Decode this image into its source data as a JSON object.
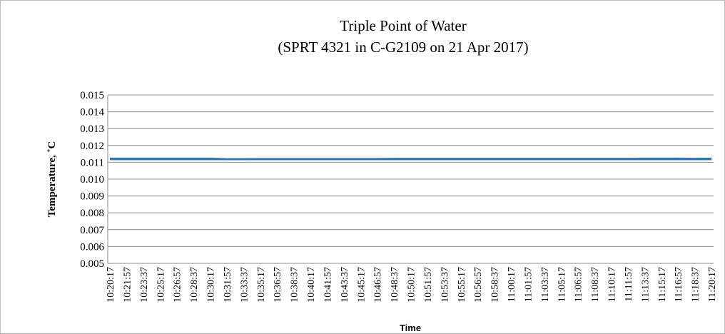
{
  "chart_data": {
    "type": "line",
    "title": "Triple Point of Water",
    "subtitle": "(SPRT 4321 in C-G2109 on 21 Apr 2017)",
    "y_label": "Temperature, ˚C",
    "x_label": "Time",
    "categories": [
      "10:20:17",
      "10:21:57",
      "10:23:37",
      "10:25:17",
      "10:26:57",
      "10:28:37",
      "10:30:17",
      "10:31:57",
      "10:33:37",
      "10:35:17",
      "10:36:57",
      "10:38:37",
      "10:40:17",
      "10:41:57",
      "10:43:37",
      "10:45:17",
      "10:46:57",
      "10:48:37",
      "10:50:17",
      "10:51:57",
      "10:53:37",
      "10:55:17",
      "10:56:57",
      "10:58:37",
      "11:00:17",
      "11:01:57",
      "11:03:37",
      "11:05:17",
      "11:06:57",
      "11:08:37",
      "11:10:17",
      "11:11:57",
      "11:13:37",
      "11:15:17",
      "11:16:57",
      "11:18:37",
      "11:20:17"
    ],
    "series": [
      {
        "color": "#2e75b6",
        "width": 3.5,
        "values": [
          0.0112,
          0.0112,
          0.0112,
          0.0112,
          0.0112,
          0.0112,
          0.0112,
          0.01117,
          0.01117,
          0.01118,
          0.01118,
          0.01118,
          0.01118,
          0.01118,
          0.01118,
          0.01118,
          0.01118,
          0.01119,
          0.01119,
          0.01119,
          0.01119,
          0.01119,
          0.01119,
          0.01119,
          0.01119,
          0.01119,
          0.01119,
          0.01119,
          0.01119,
          0.01119,
          0.01119,
          0.01119,
          0.0112,
          0.0112,
          0.0112,
          0.01119,
          0.0112
        ]
      },
      {
        "color": "#9dc3e6",
        "width": 1.2,
        "values": [
          0.01112,
          0.01112,
          0.01112,
          0.01112,
          0.01112,
          0.01112,
          0.01112,
          0.01112,
          0.01112,
          0.01112,
          0.01112,
          0.01112,
          0.01112,
          0.01112,
          0.01112,
          0.01112,
          0.01112,
          0.01112,
          0.01112,
          0.01112,
          0.01112,
          0.01112,
          0.01112,
          0.01112,
          0.01112,
          0.01112,
          0.01112,
          0.01112,
          0.01112,
          0.01112,
          0.01112,
          0.01112,
          0.01112,
          0.01112,
          0.01112,
          0.01112,
          0.01112
        ]
      }
    ],
    "ylim": [
      0.005,
      0.015
    ],
    "yticks": [
      0.005,
      0.006,
      0.007,
      0.008,
      0.009,
      {
        "value": 0.01,
        "label": "0.010"
      },
      0.011,
      0.012,
      0.013,
      0.014,
      0.015
    ],
    "grid": true
  }
}
